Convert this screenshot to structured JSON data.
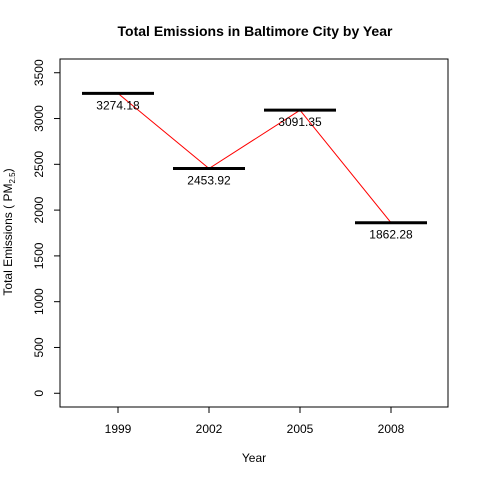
{
  "chart_data": {
    "type": "line",
    "title": "Total Emissions in Baltimore City by Year",
    "xlabel": "Year",
    "ylabel_main": "Total Emissions ( PM",
    "ylabel_sub": "2.5",
    "ylabel_end": ")",
    "categories": [
      "1999",
      "2002",
      "2005",
      "2008"
    ],
    "values": [
      3274.18,
      2453.92,
      3091.35,
      1862.28
    ],
    "data_labels": [
      "3274.18",
      "2453.92",
      "3091.35",
      "1862.28"
    ],
    "y_ticks": [
      0,
      500,
      1000,
      1500,
      2000,
      2500,
      3000,
      3500
    ],
    "y_tick_labels": [
      "0",
      "500",
      "1000",
      "1500",
      "2000",
      "2500",
      "3000",
      "3500"
    ],
    "ylim": [
      -150,
      3650
    ],
    "grid": false,
    "colors": {
      "line": "#ff0000",
      "marker": "#000000",
      "axis": "#000000"
    }
  }
}
